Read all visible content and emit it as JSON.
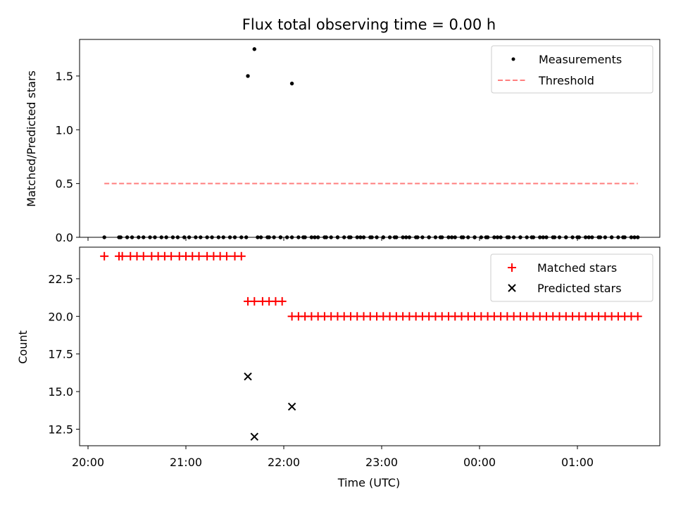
{
  "chart_data": [
    {
      "type": "scatter",
      "title": "Flux total observing time = 0.00 h",
      "xlabel": "",
      "ylabel": "Matched/Predicted stars",
      "ylim": [
        0,
        1.84
      ],
      "y_ticks": [
        "0.0",
        "0.5",
        "1.0",
        "1.5"
      ],
      "y_tick_values": [
        0.0,
        0.5,
        1.0,
        1.5
      ],
      "x_ticks_shown": false,
      "legend_position": "top-right",
      "series": [
        {
          "name": "Measurements",
          "marker": "dot",
          "color": "#000000",
          "x": [
            "20:10",
            "20:19",
            "20:20",
            "20:27",
            "20:34",
            "20:41",
            "20:48",
            "20:55",
            "21:02",
            "21:09",
            "21:16",
            "21:23",
            "21:30",
            "21:37",
            "21:44",
            "21:51",
            "21:58",
            "22:05",
            "22:12",
            "22:19",
            "22:26",
            "22:33",
            "22:40",
            "22:47",
            "22:54",
            "23:01",
            "23:08",
            "23:15",
            "23:22",
            "23:29",
            "23:36",
            "23:43",
            "23:50",
            "23:57",
            "00:04",
            "00:11",
            "00:18",
            "00:25",
            "00:32",
            "00:39",
            "00:46",
            "00:53",
            "01:00",
            "01:07",
            "01:14",
            "01:21",
            "01:28",
            "01:35",
            "20:24",
            "20:31",
            "20:38",
            "20:45",
            "20:52",
            "20:59",
            "21:06",
            "21:13",
            "21:20",
            "21:27",
            "21:34",
            "21:38",
            "21:42",
            "21:46",
            "21:50",
            "21:54",
            "21:58",
            "22:02",
            "22:05",
            "22:09",
            "22:13",
            "22:17",
            "22:21",
            "22:25",
            "22:29",
            "22:33",
            "22:37",
            "22:41",
            "22:45",
            "22:49",
            "22:53",
            "22:57",
            "23:01",
            "23:05",
            "23:09",
            "23:13",
            "23:17",
            "23:21",
            "23:25",
            "23:29",
            "23:33",
            "23:37",
            "23:41",
            "23:45",
            "23:49",
            "23:53",
            "23:57",
            "00:01",
            "00:05",
            "00:09",
            "00:13",
            "00:17",
            "00:21",
            "00:25",
            "00:29",
            "00:33",
            "00:37",
            "00:41",
            "00:45",
            "00:49",
            "00:53",
            "00:57",
            "01:01",
            "01:05",
            "01:09",
            "01:13",
            "01:17",
            "01:21",
            "01:25",
            "01:29",
            "01:33",
            "01:37"
          ],
          "y": [
            0,
            0,
            0,
            0,
            0,
            0,
            0,
            0,
            0,
            0,
            0,
            0,
            0,
            0,
            0,
            0,
            0,
            0,
            0,
            0,
            0,
            0,
            0,
            0,
            0,
            0,
            0,
            0,
            0,
            0,
            0,
            0,
            0,
            0,
            0,
            0,
            0,
            0,
            0,
            0,
            0,
            0,
            0,
            0,
            0,
            0,
            0,
            0,
            0,
            0,
            0,
            0,
            0,
            0,
            0,
            0,
            0,
            0,
            0,
            1.5,
            1.75,
            0,
            0,
            0,
            0,
            0,
            1.43,
            0,
            0,
            0,
            0,
            0,
            0,
            0,
            0,
            0,
            0,
            0,
            0,
            0,
            0,
            0,
            0,
            0,
            0,
            0,
            0,
            0,
            0,
            0,
            0,
            0,
            0,
            0,
            0,
            0,
            0,
            0,
            0,
            0,
            0,
            0,
            0,
            0,
            0,
            0,
            0,
            0,
            0,
            0,
            0,
            0,
            0,
            0,
            0,
            0,
            0,
            0,
            0,
            0
          ]
        },
        {
          "name": "Threshold",
          "marker": "dashed-line",
          "color": "#ff7f7f",
          "x": [
            "20:10",
            "01:37"
          ],
          "y": [
            0.5,
            0.5
          ]
        }
      ]
    },
    {
      "type": "scatter",
      "title": "",
      "xlabel": "Time (UTC)",
      "ylabel": "Count",
      "ylim": [
        11.4,
        24.6
      ],
      "y_ticks": [
        "12.5",
        "15.0",
        "17.5",
        "20.0",
        "22.5"
      ],
      "y_tick_values": [
        12.5,
        15.0,
        17.5,
        20.0,
        22.5
      ],
      "x_ticks": [
        "20:00",
        "21:00",
        "22:00",
        "23:00",
        "00:00",
        "01:00"
      ],
      "legend_position": "top-right",
      "series": [
        {
          "name": "Matched stars",
          "marker": "plus",
          "color": "#ff0000",
          "x": [
            "20:10",
            "20:19",
            "20:21",
            "20:26",
            "20:30",
            "20:34",
            "20:39",
            "20:43",
            "20:47",
            "20:51",
            "20:56",
            "21:00",
            "21:04",
            "21:08",
            "21:13",
            "21:17",
            "21:21",
            "21:25",
            "21:30",
            "21:34",
            "21:38",
            "21:42",
            "21:47",
            "21:51",
            "21:55",
            "21:59",
            "22:05",
            "22:09",
            "22:13",
            "22:17",
            "22:21",
            "22:25",
            "22:29",
            "22:33",
            "22:37",
            "22:41",
            "22:45",
            "22:49",
            "22:53",
            "22:57",
            "23:01",
            "23:05",
            "23:09",
            "23:13",
            "23:17",
            "23:21",
            "23:25",
            "23:29",
            "23:33",
            "23:37",
            "23:41",
            "23:45",
            "23:49",
            "23:53",
            "23:57",
            "00:01",
            "00:05",
            "00:09",
            "00:13",
            "00:17",
            "00:21",
            "00:25",
            "00:29",
            "00:33",
            "00:37",
            "00:41",
            "00:45",
            "00:49",
            "00:53",
            "00:57",
            "01:01",
            "01:05",
            "01:09",
            "01:13",
            "01:17",
            "01:21",
            "01:25",
            "01:29",
            "01:33",
            "01:37"
          ],
          "y": [
            24,
            24,
            24,
            24,
            24,
            24,
            24,
            24,
            24,
            24,
            24,
            24,
            24,
            24,
            24,
            24,
            24,
            24,
            24,
            24,
            21,
            21,
            21,
            21,
            21,
            21,
            20,
            20,
            20,
            20,
            20,
            20,
            20,
            20,
            20,
            20,
            20,
            20,
            20,
            20,
            20,
            20,
            20,
            20,
            20,
            20,
            20,
            20,
            20,
            20,
            20,
            20,
            20,
            20,
            20,
            20,
            20,
            20,
            20,
            20,
            20,
            20,
            20,
            20,
            20,
            20,
            20,
            20,
            20,
            20,
            20,
            20,
            20,
            20,
            20,
            20,
            20,
            20,
            20,
            20
          ]
        },
        {
          "name": "Predicted stars",
          "marker": "x",
          "color": "#000000",
          "x": [
            "21:38",
            "21:42",
            "22:05"
          ],
          "y": [
            16,
            12,
            14
          ]
        }
      ]
    }
  ]
}
